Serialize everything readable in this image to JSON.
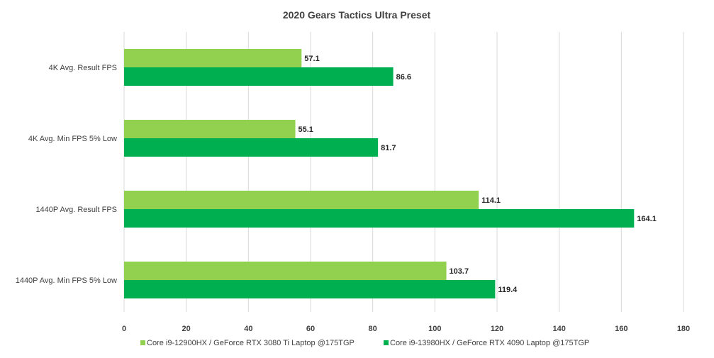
{
  "chart_data": {
    "type": "bar",
    "orientation": "horizontal",
    "title": "2020 Gears Tactics Ultra Preset",
    "categories": [
      "4K Avg. Result  FPS",
      "4K Avg. Min FPS 5% Low",
      "1440P Avg. Result  FPS",
      "1440P Avg. Min FPS 5% Low"
    ],
    "series": [
      {
        "name": "Core i9-12900HX / GeForce RTX 3080 Ti Laptop @175TGP",
        "color": "#92d050",
        "values": [
          57.1,
          55.1,
          114.1,
          103.7
        ]
      },
      {
        "name": "Core i9-13980HX  / GeForce RTX 4090 Laptop @175TGP",
        "color": "#00b050",
        "values": [
          86.6,
          81.7,
          164.1,
          119.4
        ]
      }
    ],
    "xlim": [
      0,
      180
    ],
    "xticks": [
      0,
      20,
      40,
      60,
      80,
      100,
      120,
      140,
      160,
      180
    ],
    "grid": true,
    "legend_position": "bottom"
  }
}
